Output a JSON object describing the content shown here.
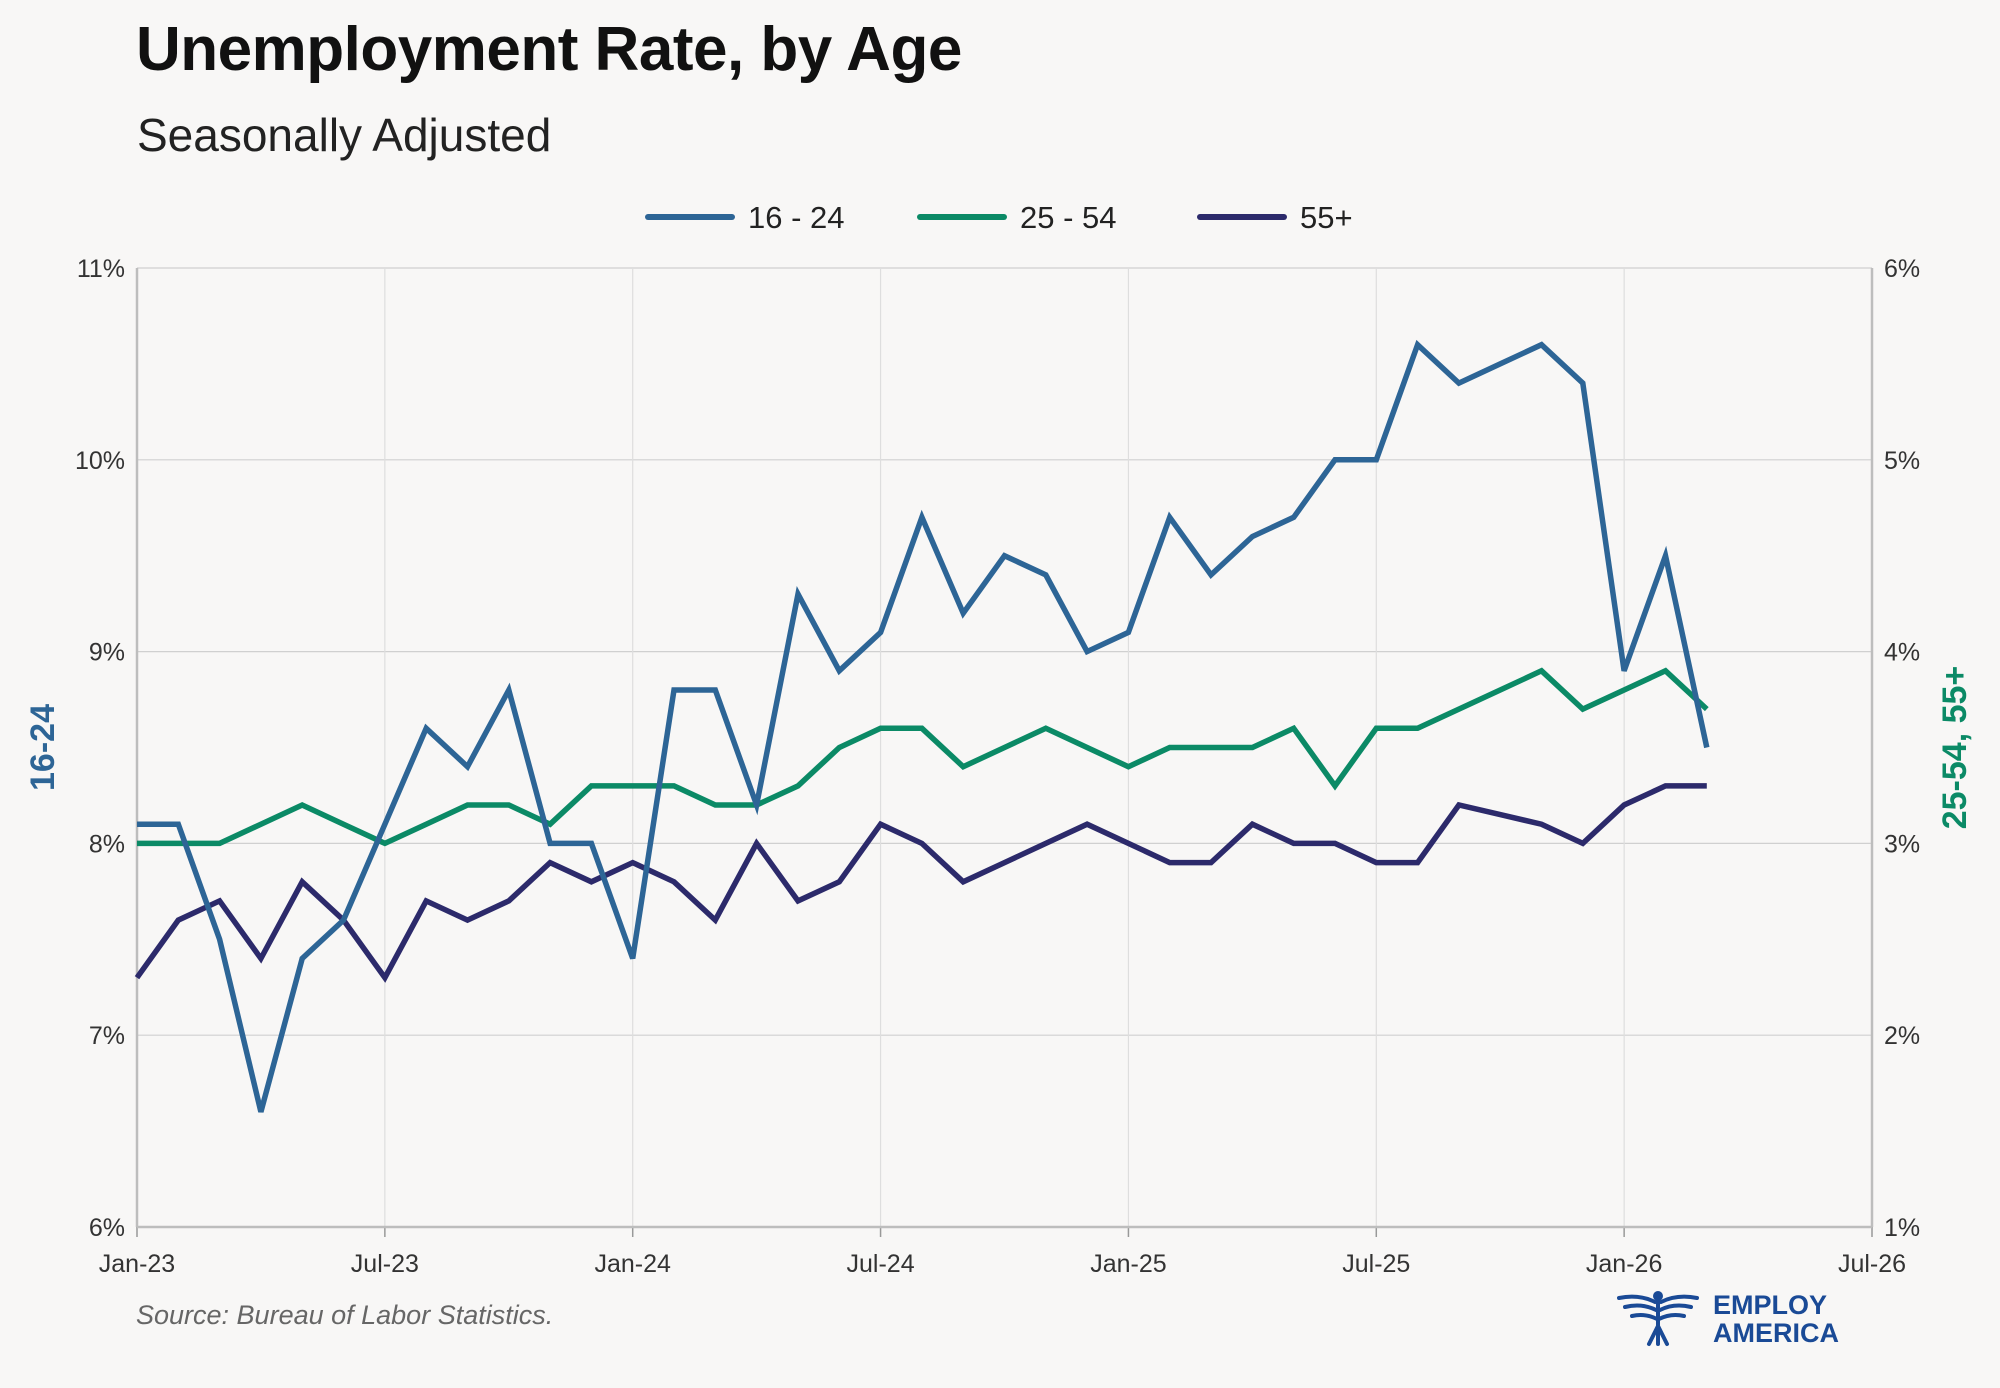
{
  "title": "Unemployment Rate, by Age",
  "subtitle": "Seasonally Adjusted",
  "source": "Source: Bureau of Labor Statistics.",
  "logo": {
    "line1": "EMPLOY",
    "line2": "AMERICA"
  },
  "colors": {
    "s1624": "#2d6596",
    "s2554": "#0b8a66",
    "s55": "#2c2a6b",
    "logo": "#1a4a96"
  },
  "chart_data": {
    "type": "line",
    "title": "Unemployment Rate, by Age",
    "subtitle": "Seasonally Adjusted",
    "xlabel": "",
    "left_axis": {
      "label": "16-24",
      "ylim": [
        6,
        11
      ],
      "ticks": [
        "6%",
        "7%",
        "8%",
        "9%",
        "10%",
        "11%"
      ]
    },
    "right_axis": {
      "label": "25-54, 55+",
      "ylim": [
        1,
        6
      ],
      "ticks": [
        "1%",
        "2%",
        "3%",
        "4%",
        "5%",
        "6%"
      ]
    },
    "x_ticks": [
      "Jan-23",
      "Jul-23",
      "Jan-24",
      "Jul-24",
      "Jan-25",
      "Jul-25",
      "Jan-26",
      "Jul-26"
    ],
    "x_start": "Jan-23",
    "x_months_total": 42,
    "legend": [
      "16 - 24",
      "25 - 54",
      "55+"
    ],
    "legend_position": "top-center",
    "series": [
      {
        "name": "16 - 24",
        "axis": "left",
        "color": "#2d6596",
        "values": [
          8.1,
          8.1,
          7.5,
          6.6,
          7.4,
          7.6,
          8.1,
          8.6,
          8.4,
          8.8,
          8.0,
          8.0,
          7.4,
          8.8,
          8.8,
          8.2,
          9.3,
          8.9,
          9.1,
          9.7,
          9.2,
          9.5,
          9.4,
          9.0,
          9.1,
          9.7,
          9.4,
          9.6,
          9.7,
          10.0,
          10.0,
          10.6,
          10.4,
          10.5,
          10.6,
          10.4,
          8.9,
          9.5,
          8.5
        ]
      },
      {
        "name": "25 - 54",
        "axis": "right",
        "color": "#0b8a66",
        "values": [
          3.0,
          3.0,
          3.0,
          3.1,
          3.2,
          3.1,
          3.0,
          3.1,
          3.2,
          3.2,
          3.1,
          3.3,
          3.3,
          3.3,
          3.2,
          3.2,
          3.3,
          3.5,
          3.6,
          3.6,
          3.4,
          3.5,
          3.6,
          3.5,
          3.4,
          3.5,
          3.5,
          3.5,
          3.6,
          3.3,
          3.6,
          3.6,
          3.7,
          3.8,
          3.9,
          3.7,
          3.8,
          3.9,
          3.7
        ]
      },
      {
        "name": "55+",
        "axis": "right",
        "color": "#2c2a6b",
        "values": [
          2.3,
          2.6,
          2.7,
          2.4,
          2.8,
          2.6,
          2.3,
          2.7,
          2.6,
          2.7,
          2.9,
          2.8,
          2.9,
          2.8,
          2.6,
          3.0,
          2.7,
          2.8,
          3.1,
          3.0,
          2.8,
          2.9,
          3.0,
          3.1,
          3.0,
          2.9,
          2.9,
          3.1,
          3.0,
          3.0,
          2.9,
          2.9,
          3.2,
          3.15,
          3.1,
          3.0,
          3.2,
          3.3,
          3.3
        ]
      }
    ]
  }
}
